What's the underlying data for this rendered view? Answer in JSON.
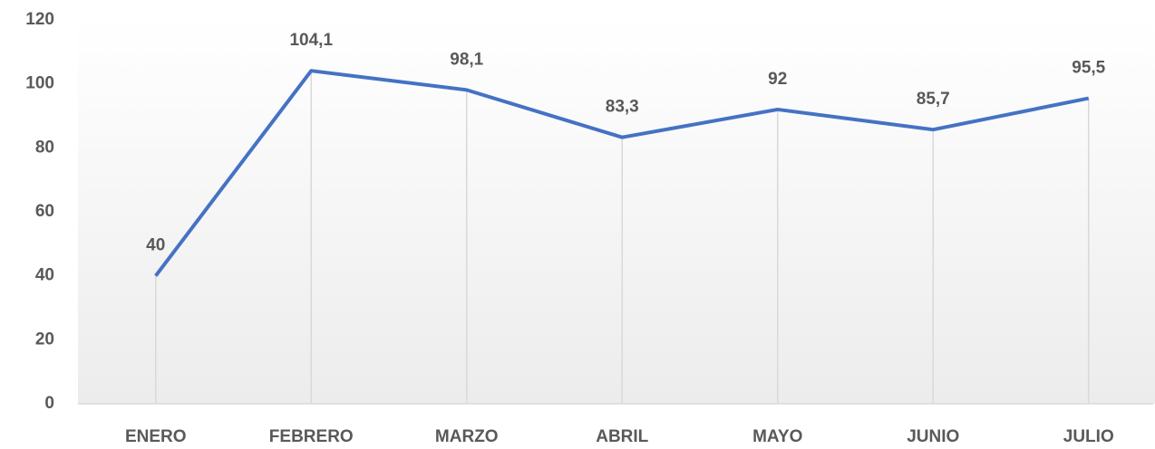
{
  "chart_data": {
    "type": "line",
    "categories": [
      "ENERO",
      "FEBRERO",
      "MARZO",
      "ABRIL",
      "MAYO",
      "JUNIO",
      "JULIO"
    ],
    "series": [
      {
        "color": "#4472c4",
        "values": [
          40,
          104.1,
          98.1,
          83.3,
          92,
          85.7,
          95.5
        ],
        "value_labels": [
          "40",
          "104,1",
          "98,1",
          "83,3",
          "92",
          "85,7",
          "95,5"
        ]
      }
    ],
    "ylim": [
      0,
      120
    ],
    "yticks": [
      0,
      20,
      40,
      60,
      80,
      100,
      120
    ]
  }
}
